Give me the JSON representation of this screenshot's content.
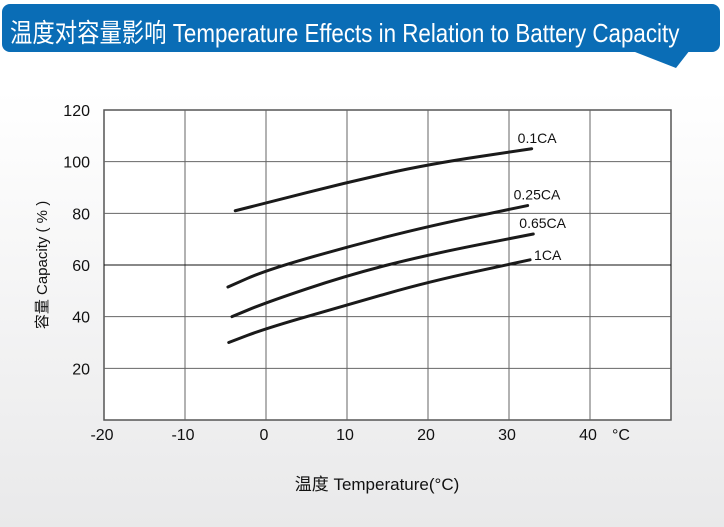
{
  "header": {
    "title": "温度对容量影响 Temperature Effects in Relation to Battery Capacity",
    "color": "#0a6db6"
  },
  "chart_data": {
    "type": "line",
    "title": "温度对容量影响 Temperature Effects in Relation to Battery Capacity",
    "xlabel": "温度  Temperature(°C)",
    "ylabel": "容量 Capacity ( % )",
    "x_unit_label": "°C",
    "xlim": [
      -20,
      50
    ],
    "ylim": [
      0,
      120
    ],
    "xticks": [
      -20,
      -10,
      0,
      10,
      20,
      30,
      40
    ],
    "yticks": [
      20,
      40,
      60,
      80,
      100,
      120
    ],
    "grid": true,
    "series": [
      {
        "name": "0.1CA",
        "x": [
          -3.8,
          0,
          10,
          20,
          32.8
        ],
        "y": [
          81,
          84,
          92,
          99,
          105
        ]
      },
      {
        "name": "0.25CA",
        "x": [
          -4.7,
          0,
          10,
          20,
          32.3
        ],
        "y": [
          51.5,
          58,
          67,
          75,
          83
        ]
      },
      {
        "name": "0.65CA",
        "x": [
          -4.2,
          0,
          10,
          20,
          33
        ],
        "y": [
          40,
          45.5,
          56,
          64,
          72
        ]
      },
      {
        "name": "1CA",
        "x": [
          -4.6,
          0,
          10,
          20,
          32.6
        ],
        "y": [
          30,
          35.5,
          44.5,
          53.5,
          62
        ]
      }
    ]
  }
}
